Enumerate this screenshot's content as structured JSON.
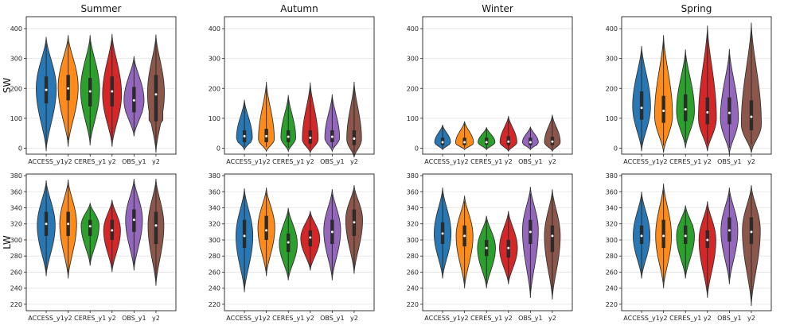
{
  "chart_data": {
    "type": "violin",
    "columns": [
      "Summer",
      "Autumn",
      "Winter",
      "Spring"
    ],
    "rows": [
      {
        "label": "SW",
        "ylim": [
          -20,
          440
        ],
        "yticks": [
          0,
          100,
          200,
          300,
          400
        ]
      },
      {
        "label": "LW",
        "ylim": [
          212,
          382
        ],
        "yticks": [
          220,
          240,
          260,
          280,
          300,
          320,
          340,
          360,
          380
        ]
      }
    ],
    "categories": [
      "ACCESS_y1",
      "y2",
      "CERES_y1",
      "y2",
      "OBS_y1",
      "y2"
    ],
    "category_colors": [
      "#2878b5",
      "#ff8c1a",
      "#2ca02c",
      "#d62728",
      "#9467bd",
      "#8c564b"
    ],
    "panels": [
      {
        "row": 0,
        "col": 0,
        "violins": [
          {
            "min": -10,
            "max": 372,
            "q1": 150,
            "median": 195,
            "q3": 240,
            "mode": 200,
            "width": 0.95
          },
          {
            "min": 5,
            "max": 378,
            "q1": 160,
            "median": 200,
            "q3": 245,
            "mode": 205,
            "width": 0.95
          },
          {
            "min": 10,
            "max": 378,
            "q1": 140,
            "median": 190,
            "q3": 235,
            "mode": 195,
            "width": 0.9
          },
          {
            "min": 5,
            "max": 382,
            "q1": 140,
            "median": 190,
            "q3": 240,
            "mode": 180,
            "width": 0.9
          },
          {
            "min": 40,
            "max": 308,
            "q1": 120,
            "median": 160,
            "q3": 205,
            "mode": 160,
            "width": 0.95
          },
          {
            "min": -15,
            "max": 380,
            "q1": 90,
            "median": 180,
            "q3": 245,
            "mode": 185,
            "width": 0.8
          }
        ]
      },
      {
        "row": 0,
        "col": 1,
        "violins": [
          {
            "min": -5,
            "max": 162,
            "q1": 20,
            "median": 40,
            "q3": 60,
            "mode": 35,
            "width": 0.75
          },
          {
            "min": -10,
            "max": 222,
            "q1": 20,
            "median": 40,
            "q3": 65,
            "mode": 30,
            "width": 0.75
          },
          {
            "min": -10,
            "max": 178,
            "q1": 20,
            "median": 38,
            "q3": 60,
            "mode": 35,
            "width": 0.7
          },
          {
            "min": -15,
            "max": 220,
            "q1": 15,
            "median": 35,
            "q3": 60,
            "mode": 30,
            "width": 0.75
          },
          {
            "min": -10,
            "max": 180,
            "q1": 20,
            "median": 38,
            "q3": 60,
            "mode": 35,
            "width": 0.7
          },
          {
            "min": -30,
            "max": 222,
            "q1": 10,
            "median": 32,
            "q3": 60,
            "mode": 30,
            "width": 0.7
          }
        ]
      },
      {
        "row": 0,
        "col": 2,
        "violins": [
          {
            "min": -5,
            "max": 78,
            "q1": 10,
            "median": 20,
            "q3": 35,
            "mode": 20,
            "width": 0.75
          },
          {
            "min": -5,
            "max": 90,
            "q1": 10,
            "median": 20,
            "q3": 35,
            "mode": 18,
            "width": 0.85
          },
          {
            "min": -5,
            "max": 70,
            "q1": 12,
            "median": 20,
            "q3": 35,
            "mode": 20,
            "width": 0.8
          },
          {
            "min": -10,
            "max": 108,
            "q1": 10,
            "median": 22,
            "q3": 40,
            "mode": 20,
            "width": 0.8
          },
          {
            "min": -5,
            "max": 72,
            "q1": 10,
            "median": 20,
            "q3": 35,
            "mode": 20,
            "width": 0.75
          },
          {
            "min": -10,
            "max": 112,
            "q1": 10,
            "median": 22,
            "q3": 38,
            "mode": 20,
            "width": 0.75
          }
        ]
      },
      {
        "row": 0,
        "col": 3,
        "violins": [
          {
            "min": -10,
            "max": 342,
            "q1": 95,
            "median": 135,
            "q3": 190,
            "mode": 140,
            "width": 0.85
          },
          {
            "min": -15,
            "max": 378,
            "q1": 85,
            "median": 125,
            "q3": 175,
            "mode": 110,
            "width": 0.85
          },
          {
            "min": 0,
            "max": 330,
            "q1": 90,
            "median": 130,
            "q3": 180,
            "mode": 125,
            "width": 0.85
          },
          {
            "min": -10,
            "max": 410,
            "q1": 80,
            "median": 120,
            "q3": 170,
            "mode": 100,
            "width": 0.85
          },
          {
            "min": -20,
            "max": 332,
            "q1": 80,
            "median": 118,
            "q3": 170,
            "mode": 100,
            "width": 0.85
          },
          {
            "min": -15,
            "max": 420,
            "q1": 60,
            "median": 105,
            "q3": 160,
            "mode": 80,
            "width": 0.95
          }
        ]
      },
      {
        "row": 1,
        "col": 0,
        "violins": [
          {
            "min": 255,
            "max": 374,
            "q1": 305,
            "median": 320,
            "q3": 335,
            "mode": 318,
            "width": 0.85
          },
          {
            "min": 252,
            "max": 375,
            "q1": 305,
            "median": 320,
            "q3": 335,
            "mode": 320,
            "width": 0.8
          },
          {
            "min": 268,
            "max": 346,
            "q1": 305,
            "median": 317,
            "q3": 325,
            "mode": 318,
            "width": 0.85
          },
          {
            "min": 260,
            "max": 350,
            "q1": 300,
            "median": 312,
            "q3": 325,
            "mode": 312,
            "width": 0.8
          },
          {
            "min": 262,
            "max": 376,
            "q1": 310,
            "median": 325,
            "q3": 338,
            "mode": 325,
            "width": 0.8
          },
          {
            "min": 243,
            "max": 376,
            "q1": 295,
            "median": 318,
            "q3": 335,
            "mode": 318,
            "width": 0.75
          }
        ]
      },
      {
        "row": 1,
        "col": 1,
        "violins": [
          {
            "min": 235,
            "max": 364,
            "q1": 290,
            "median": 305,
            "q3": 325,
            "mode": 305,
            "width": 0.8
          },
          {
            "min": 255,
            "max": 365,
            "q1": 300,
            "median": 312,
            "q3": 330,
            "mode": 315,
            "width": 0.8
          },
          {
            "min": 250,
            "max": 340,
            "q1": 285,
            "median": 297,
            "q3": 308,
            "mode": 295,
            "width": 0.85
          },
          {
            "min": 262,
            "max": 336,
            "q1": 292,
            "median": 303,
            "q3": 312,
            "mode": 302,
            "width": 0.9
          },
          {
            "min": 250,
            "max": 363,
            "q1": 295,
            "median": 310,
            "q3": 325,
            "mode": 312,
            "width": 0.8
          },
          {
            "min": 258,
            "max": 368,
            "q1": 305,
            "median": 322,
            "q3": 338,
            "mode": 325,
            "width": 0.8
          }
        ]
      },
      {
        "row": 1,
        "col": 2,
        "violins": [
          {
            "min": 252,
            "max": 365,
            "q1": 295,
            "median": 308,
            "q3": 322,
            "mode": 308,
            "width": 0.8
          },
          {
            "min": 240,
            "max": 355,
            "q1": 292,
            "median": 305,
            "q3": 318,
            "mode": 305,
            "width": 0.8
          },
          {
            "min": 240,
            "max": 330,
            "q1": 280,
            "median": 290,
            "q3": 300,
            "mode": 290,
            "width": 0.85
          },
          {
            "min": 245,
            "max": 336,
            "q1": 278,
            "median": 290,
            "q3": 300,
            "mode": 290,
            "width": 0.85
          },
          {
            "min": 228,
            "max": 366,
            "q1": 295,
            "median": 310,
            "q3": 325,
            "mode": 312,
            "width": 0.75
          },
          {
            "min": 226,
            "max": 363,
            "q1": 285,
            "median": 305,
            "q3": 318,
            "mode": 305,
            "width": 0.75
          }
        ]
      },
      {
        "row": 1,
        "col": 3,
        "violins": [
          {
            "min": 252,
            "max": 360,
            "q1": 295,
            "median": 305,
            "q3": 318,
            "mode": 305,
            "width": 0.8
          },
          {
            "min": 240,
            "max": 370,
            "q1": 290,
            "median": 305,
            "q3": 325,
            "mode": 305,
            "width": 0.75
          },
          {
            "min": 252,
            "max": 343,
            "q1": 295,
            "median": 305,
            "q3": 318,
            "mode": 305,
            "width": 0.85
          },
          {
            "min": 228,
            "max": 348,
            "q1": 290,
            "median": 300,
            "q3": 312,
            "mode": 300,
            "width": 0.8
          },
          {
            "min": 245,
            "max": 365,
            "q1": 298,
            "median": 312,
            "q3": 328,
            "mode": 312,
            "width": 0.8
          },
          {
            "min": 218,
            "max": 368,
            "q1": 295,
            "median": 310,
            "q3": 328,
            "mode": 312,
            "width": 0.85
          }
        ]
      }
    ]
  }
}
